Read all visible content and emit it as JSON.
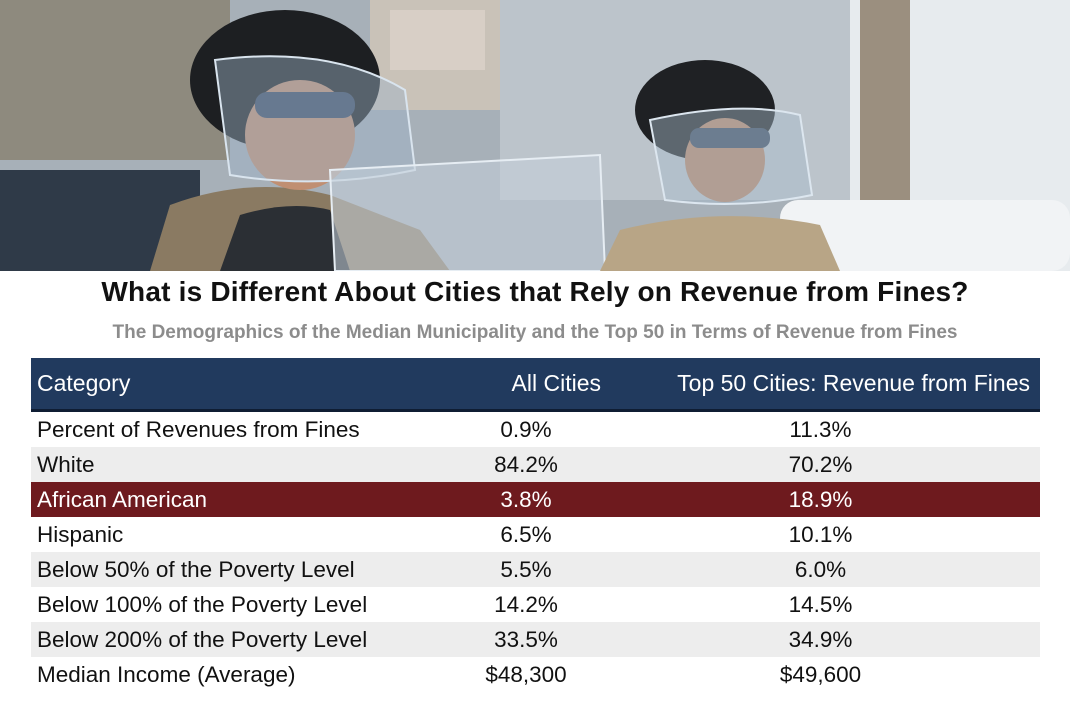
{
  "photo": {
    "description_icon": "riot-police-photo-icon"
  },
  "title": "What is Different About Cities that Rely on Revenue from Fines?",
  "subtitle": "The Demographics of the Median Municipality and the Top 50 in Terms of Revenue from Fines",
  "colors": {
    "header_bg": "#213a5e",
    "highlight_bg": "#6e1a1e",
    "alt_row_bg": "#ededed",
    "subtitle": "#8c8c8c"
  },
  "table": {
    "headers": [
      "Category",
      "All Cities",
      "Top 50 Cities: Revenue from Fines"
    ],
    "rows": [
      {
        "category": "Percent of Revenues from Fines",
        "all": "0.9%",
        "top50": "11.3%"
      },
      {
        "category": "White",
        "all": "84.2%",
        "top50": "70.2%"
      },
      {
        "category": "African American",
        "all": "3.8%",
        "top50": "18.9%"
      },
      {
        "category": "Hispanic",
        "all": "6.5%",
        "top50": "10.1%"
      },
      {
        "category": "Below 50% of the Poverty Level",
        "all": "5.5%",
        "top50": "6.0%"
      },
      {
        "category": "Below 100% of the Poverty Level",
        "all": "14.2%",
        "top50": "14.5%"
      },
      {
        "category": "Below 200% of the Poverty Level",
        "all": "33.5%",
        "top50": "34.9%"
      },
      {
        "category": "Median Income (Average)",
        "all": "$48,300",
        "top50": "$49,600"
      }
    ]
  }
}
